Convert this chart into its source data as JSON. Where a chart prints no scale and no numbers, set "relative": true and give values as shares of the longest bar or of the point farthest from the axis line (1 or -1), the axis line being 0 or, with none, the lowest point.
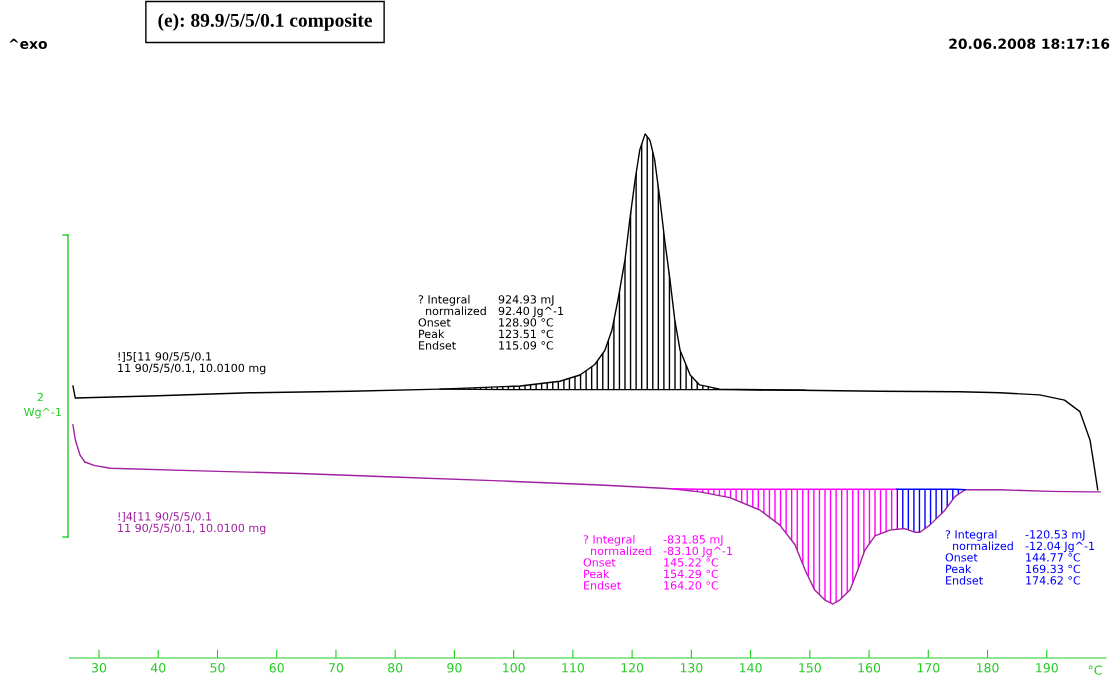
{
  "chart_data": {
    "type": "line",
    "relative": true,
    "title": "(e): 89.9/5/5/0.1 composite",
    "xlabel": "°C",
    "annotations": [
      "^exo",
      "20.06.2008 18:17:16",
      "2",
      "Wg^-1"
    ],
    "xlim": [
      25,
      200
    ],
    "xticks": [
      30,
      40,
      50,
      60,
      70,
      80,
      90,
      100,
      110,
      120,
      130,
      140,
      150,
      160,
      170,
      180,
      190
    ],
    "grid": false,
    "series": [
      {
        "name": "!]5[11 90/5/5/0.1\n11 90/5/5/0.1, 10.0100 mg",
        "color": "#000000",
        "x": [
          25.6,
          26.0,
          38.6,
          55.5,
          72.4,
          87.6,
          101.1,
          107.8,
          111.2,
          113.7,
          115.4,
          116.6,
          117.6,
          118.8,
          119.6,
          120.5,
          121.3,
          122.2,
          123.0,
          123.8,
          124.7,
          125.5,
          126.4,
          127.2,
          128.1,
          129.8,
          131.4,
          134.8,
          148.3,
          161.8,
          175.3,
          182.1,
          188.8,
          193.0,
          195.6,
          197.3,
          198.1,
          198.6
        ],
        "values": [
          0.519,
          0.496,
          0.5,
          0.506,
          0.509,
          0.513,
          0.519,
          0.528,
          0.54,
          0.56,
          0.587,
          0.626,
          0.683,
          0.76,
          0.836,
          0.912,
          0.97,
          1,
          0.988,
          0.951,
          0.874,
          0.797,
          0.721,
          0.645,
          0.587,
          0.54,
          0.521,
          0.513,
          0.511,
          0.509,
          0.508,
          0.506,
          0.502,
          0.492,
          0.47,
          0.416,
          0.359,
          0.321
        ]
      },
      {
        "name": "!]4[11 90/5/5/0.1\n11 90/5/5/0.1, 10.0100 mg",
        "color": "#a020a0",
        "x": [
          25.6,
          26.0,
          26.8,
          27.6,
          29.3,
          31.9,
          47.1,
          63.9,
          80.8,
          97.7,
          114.6,
          126.7,
          131.4,
          136.5,
          141.6,
          144.9,
          147.5,
          149.2,
          150.8,
          152.5,
          153.9,
          155.1,
          156.8,
          158.1,
          159.3,
          161.0,
          163.5,
          166.0,
          167.7,
          168.6,
          170.3,
          172.8,
          174.5,
          176.2,
          182.1,
          190.5,
          197.3,
          199.0
        ],
        "values": [
          0.445,
          0.416,
          0.387,
          0.374,
          0.367,
          0.362,
          0.357,
          0.352,
          0.345,
          0.338,
          0.33,
          0.323,
          0.317,
          0.306,
          0.282,
          0.254,
          0.216,
          0.168,
          0.13,
          0.111,
          0.103,
          0.111,
          0.13,
          0.168,
          0.206,
          0.233,
          0.244,
          0.247,
          0.24,
          0.24,
          0.254,
          0.282,
          0.308,
          0.321,
          0.321,
          0.318,
          0.317,
          0.317
        ]
      },
      {
        "name": "? Integral\t924.93 mJ\n  normalized\t92.40 Jg^-1\nOnset\t128.90 °C\nPeak\t123.51 °C\nEndset\t115.09 °C",
        "color": "#000000",
        "x": [
          87.6,
          101.1,
          107.8,
          111.2,
          113.7,
          115.4,
          116.6,
          117.6,
          118.8,
          119.6,
          120.5,
          121.3,
          122.2,
          123.0,
          123.8,
          124.7,
          125.5,
          126.4,
          127.2,
          128.1,
          129.8,
          131.4,
          134.8,
          149.2
        ],
        "values": [
          0.513,
          0.512,
          0.512,
          0.512,
          0.512,
          0.512,
          0.512,
          0.512,
          0.512,
          0.512,
          0.512,
          0.512,
          0.512,
          0.512,
          0.512,
          0.512,
          0.512,
          0.512,
          0.512,
          0.512,
          0.512,
          0.512,
          0.512,
          0.511
        ],
        "lower": [
          0.513,
          0.512,
          0.512,
          0.512,
          0.512,
          0.512,
          0.512,
          0.512,
          0.512,
          0.512,
          0.512,
          0.512,
          0.512,
          0.512,
          0.512,
          0.512,
          0.512,
          0.512,
          0.512,
          0.512,
          0.512,
          0.512,
          0.512,
          0.511
        ],
        "upper": [
          0.513,
          0.519,
          0.528,
          0.54,
          0.56,
          0.587,
          0.626,
          0.683,
          0.76,
          0.836,
          0.912,
          0.97,
          1,
          0.988,
          0.951,
          0.874,
          0.797,
          0.721,
          0.645,
          0.587,
          0.54,
          0.521,
          0.513,
          0.511
        ]
      },
      {
        "name": "? Integral\t-831.85 mJ\n  normalized\t-83.10 Jg^-1\nOnset\t145.22 °C\nPeak\t154.29 °C\nEndset\t164.20 °C",
        "color": "#ff00ff",
        "x": [
          126.7,
          131.4,
          136.5,
          141.6,
          144.9,
          147.5,
          149.2,
          150.8,
          152.5,
          153.9,
          155.1,
          156.8,
          158.1,
          159.3,
          161.0,
          163.5,
          164.7
        ],
        "values": [
          0.323,
          0.322,
          0.322,
          0.322,
          0.322,
          0.322,
          0.322,
          0.322,
          0.322,
          0.322,
          0.322,
          0.322,
          0.322,
          0.322,
          0.322,
          0.322,
          0.322
        ],
        "lower": [
          0.323,
          0.317,
          0.306,
          0.282,
          0.254,
          0.216,
          0.168,
          0.13,
          0.111,
          0.103,
          0.111,
          0.13,
          0.168,
          0.206,
          0.233,
          0.244,
          0.246
        ],
        "upper": [
          0.323,
          0.322,
          0.322,
          0.322,
          0.322,
          0.322,
          0.322,
          0.322,
          0.322,
          0.322,
          0.322,
          0.322,
          0.322,
          0.322,
          0.322,
          0.322,
          0.322
        ]
      },
      {
        "name": "? Integral\t-120.53 mJ\n  normalized\t-12.04 Jg^-1\nOnset\t144.77 °C\nPeak\t169.33 °C\nEndset\t174.62 °C",
        "color": "#0000ff",
        "x": [
          164.7,
          166.0,
          167.7,
          168.6,
          170.3,
          172.8,
          174.5,
          176.2
        ],
        "values": [
          0.322,
          0.322,
          0.322,
          0.322,
          0.322,
          0.322,
          0.322,
          0.321
        ],
        "lower": [
          0.246,
          0.247,
          0.24,
          0.24,
          0.254,
          0.282,
          0.308,
          0.321
        ],
        "upper": [
          0.322,
          0.322,
          0.322,
          0.322,
          0.322,
          0.322,
          0.322,
          0.321
        ]
      }
    ]
  }
}
